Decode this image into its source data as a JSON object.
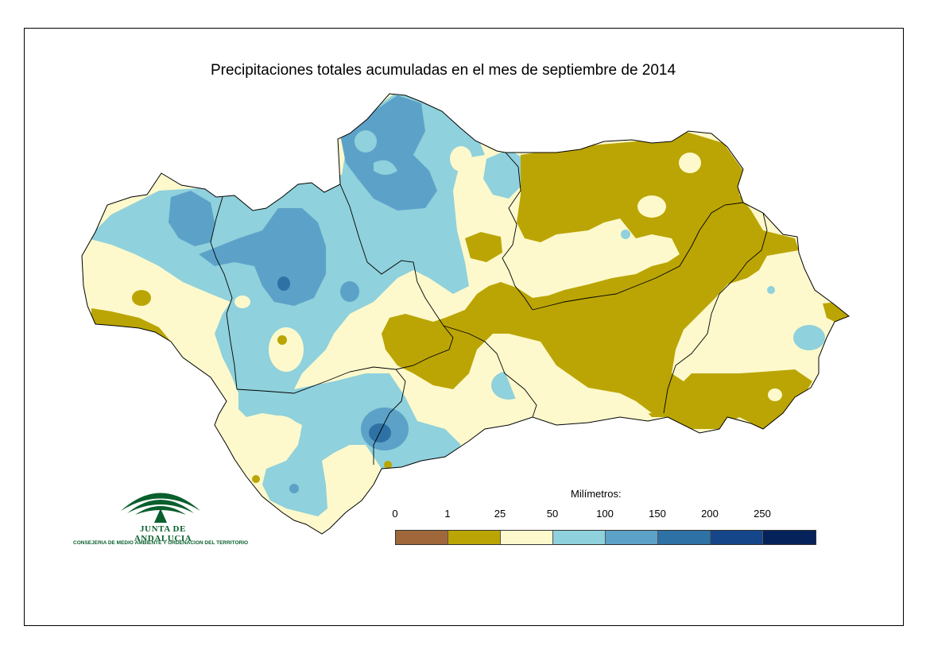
{
  "title": "Precipitaciones totales acumuladas en el mes de septiembre de 2014",
  "legend": {
    "title": "Milímetros:",
    "ticks": [
      "0",
      "1",
      "25",
      "50",
      "100",
      "150",
      "200",
      "250"
    ],
    "classes": [
      {
        "range": "0-1",
        "color": "#a0683a"
      },
      {
        "range": "1-25",
        "color": "#bba504"
      },
      {
        "range": "25-50",
        "color": "#fdf9cc"
      },
      {
        "range": "50-100",
        "color": "#8fd1dc"
      },
      {
        "range": "100-150",
        "color": "#5ca2c8"
      },
      {
        "range": "150-200",
        "color": "#2e72a5"
      },
      {
        "range": "200-250",
        "color": "#16468a"
      },
      {
        "range": ">250",
        "color": "#06225a"
      }
    ]
  },
  "logo": {
    "name": "JUNTA DE ANDALUCIA",
    "subtitle": "CONSEJERIA DE MEDIO AMBIENTE Y ORDENACION DEL TERRITORIO",
    "color": "#0a5f2d"
  }
}
